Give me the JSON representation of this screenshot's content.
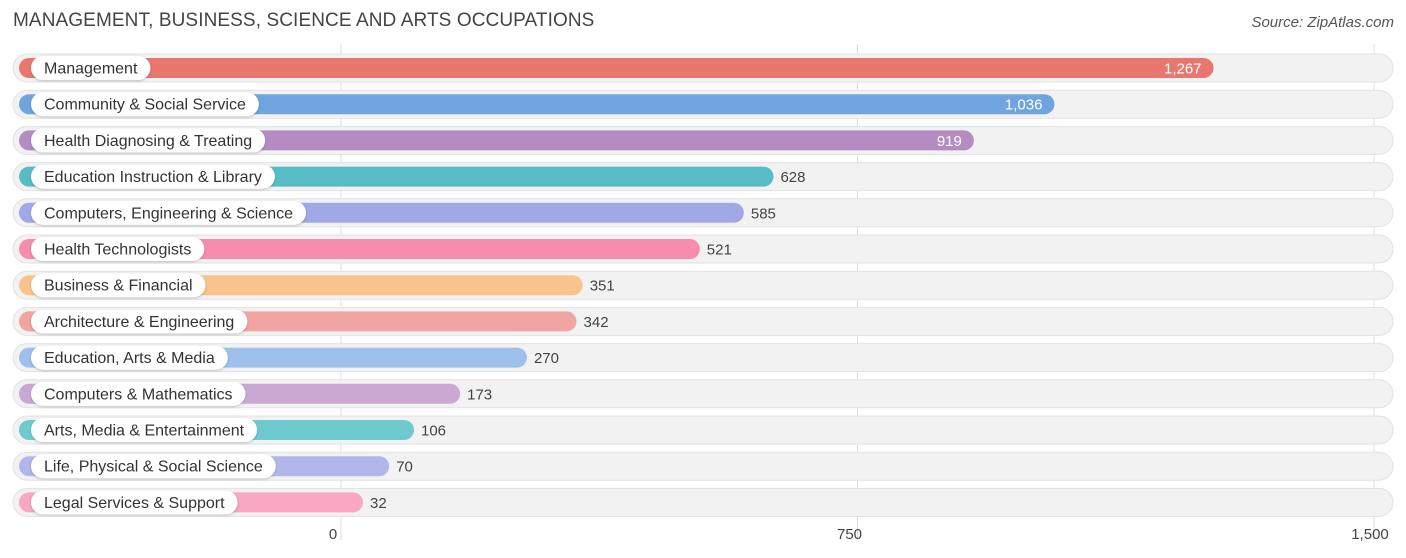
{
  "chart_data": {
    "type": "bar",
    "orientation": "horizontal",
    "title": "MANAGEMENT, BUSINESS, SCIENCE AND ARTS OCCUPATIONS",
    "source": "Source: ZipAtlas.com",
    "categories": [
      "Management",
      "Community & Social Service",
      "Health Diagnosing & Treating",
      "Education Instruction & Library",
      "Computers, Engineering & Science",
      "Health Technologists",
      "Business & Financial",
      "Architecture & Engineering",
      "Education, Arts & Media",
      "Computers & Mathematics",
      "Arts, Media & Entertainment",
      "Life, Physical & Social Science",
      "Legal Services & Support"
    ],
    "values": [
      1267,
      1036,
      919,
      628,
      585,
      521,
      351,
      342,
      270,
      173,
      106,
      70,
      32
    ],
    "value_labels": [
      "1,267",
      "1,036",
      "919",
      "628",
      "585",
      "521",
      "351",
      "342",
      "270",
      "173",
      "106",
      "70",
      "32"
    ],
    "colors": [
      "#e8776f",
      "#6fa4de",
      "#b58cc1",
      "#58bcc7",
      "#a0a9e6",
      "#f68daf",
      "#f9c48c",
      "#f0a5a2",
      "#9dc1ea",
      "#c9a9d3",
      "#6fcacf",
      "#b1b7ea",
      "#f9a7c3"
    ],
    "xticks": [
      0,
      750,
      1500
    ],
    "xtick_labels": [
      "0",
      "750",
      "1,500"
    ],
    "xlim": [
      0,
      1500
    ],
    "grid": true
  }
}
